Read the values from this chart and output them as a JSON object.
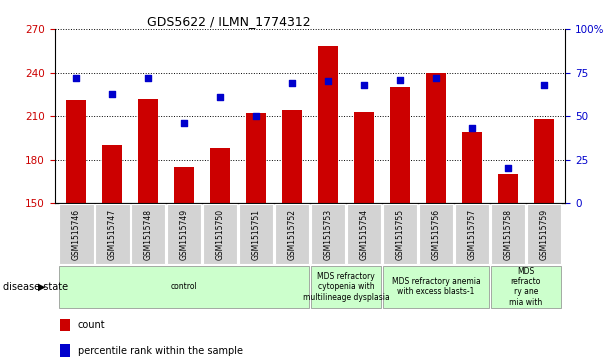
{
  "title": "GDS5622 / ILMN_1774312",
  "samples": [
    "GSM1515746",
    "GSM1515747",
    "GSM1515748",
    "GSM1515749",
    "GSM1515750",
    "GSM1515751",
    "GSM1515752",
    "GSM1515753",
    "GSM1515754",
    "GSM1515755",
    "GSM1515756",
    "GSM1515757",
    "GSM1515758",
    "GSM1515759"
  ],
  "counts": [
    221,
    190,
    222,
    175,
    188,
    212,
    214,
    258,
    213,
    230,
    240,
    199,
    170,
    208
  ],
  "percentiles": [
    72,
    63,
    72,
    46,
    61,
    50,
    69,
    70,
    68,
    71,
    72,
    43,
    20,
    68
  ],
  "ylim_left": [
    150,
    270
  ],
  "ylim_right": [
    0,
    100
  ],
  "yticks_left": [
    150,
    180,
    210,
    240,
    270
  ],
  "yticks_right": [
    0,
    25,
    50,
    75,
    100
  ],
  "bar_color": "#cc0000",
  "dot_color": "#0000cc",
  "group_boundaries": [
    [
      0,
      7,
      "control"
    ],
    [
      7,
      9,
      "MDS refractory\ncytopenia with\nmultilineage dysplasia"
    ],
    [
      9,
      12,
      "MDS refractory anemia\nwith excess blasts-1"
    ],
    [
      12,
      14,
      "MDS\nrefracto\nry ane\nmia with"
    ]
  ],
  "disease_state_label": "disease state",
  "bar_color_legend": "#cc0000",
  "dot_color_legend": "#0000cc",
  "count_label": "count",
  "pct_label": "percentile rank within the sample",
  "sample_box_color": "#d3d3d3",
  "group_box_color": "#ccffcc",
  "background_color": "#ffffff"
}
